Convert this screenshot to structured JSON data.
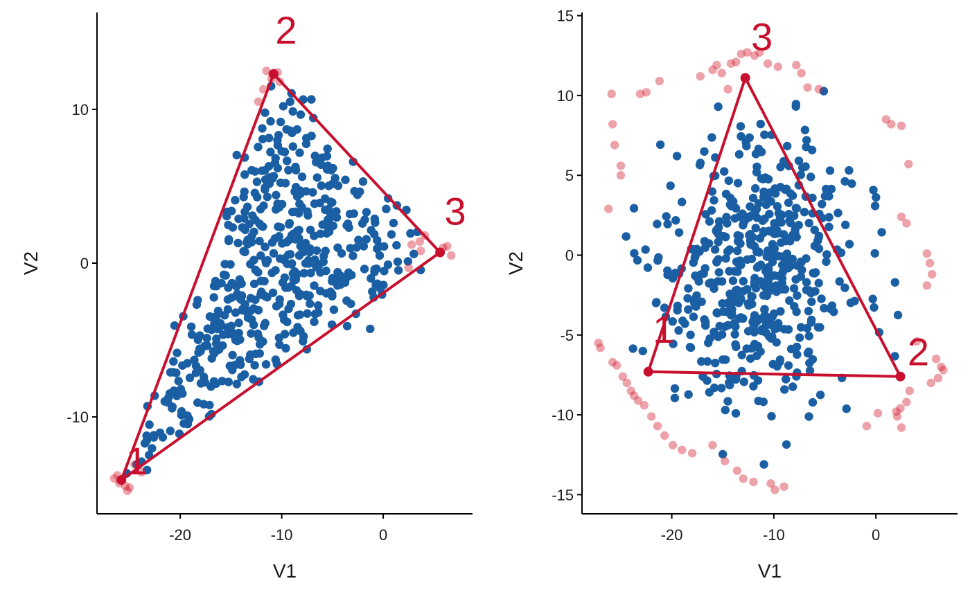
{
  "colors": {
    "points": "#1a5fa3",
    "triangle": "#c8102e",
    "outliers": "#d32032",
    "axis": "#000000"
  },
  "chart_data": [
    {
      "type": "scatter",
      "xlabel": "V1",
      "ylabel": "V2",
      "xlim": [
        -28.2,
        8.8
      ],
      "ylim": [
        -16.3,
        16.3
      ],
      "xticks": [
        -20,
        -10,
        0
      ],
      "xtick_labels": [
        "-20",
        "-10",
        "0"
      ],
      "yticks": [
        -10,
        0,
        10
      ],
      "ytick_labels": [
        "-10",
        "0",
        "10"
      ],
      "triangle": [
        {
          "label": "1",
          "x": -25.8,
          "y": -14.1
        },
        {
          "label": "2",
          "x": -10.8,
          "y": 12.3
        },
        {
          "label": "3",
          "x": 5.6,
          "y": 0.7
        }
      ],
      "highlighted_points": [
        {
          "x": -26.5,
          "y": -14.0
        },
        {
          "x": -26.0,
          "y": -14.3
        },
        {
          "x": -25.4,
          "y": -14.5
        },
        {
          "x": -26.2,
          "y": -13.8
        },
        {
          "x": -25.0,
          "y": -14.6
        },
        {
          "x": -24.5,
          "y": -13.1
        },
        {
          "x": -23.8,
          "y": -13.6
        },
        {
          "x": -25.2,
          "y": -14.8
        },
        {
          "x": -11.5,
          "y": 12.5
        },
        {
          "x": -10.9,
          "y": 12.3
        },
        {
          "x": -10.4,
          "y": 12.4
        },
        {
          "x": -11.0,
          "y": 12.0
        },
        {
          "x": -11.8,
          "y": 11.3
        },
        {
          "x": -12.3,
          "y": 10.5
        },
        {
          "x": -10.2,
          "y": 11.8
        },
        {
          "x": 2.8,
          "y": 1.2
        },
        {
          "x": 3.6,
          "y": 1.4
        },
        {
          "x": 3.7,
          "y": 0.8
        },
        {
          "x": 5.9,
          "y": 1.0
        },
        {
          "x": 6.7,
          "y": 0.5
        },
        {
          "x": 6.3,
          "y": 1.1
        },
        {
          "x": 2.5,
          "y": -0.3
        },
        {
          "x": 4.1,
          "y": 1.8
        }
      ]
    },
    {
      "type": "scatter",
      "xlabel": "V1",
      "ylabel": "V2",
      "xlim": [
        -28.8,
        8.0
      ],
      "ylim": [
        -16.2,
        15.2
      ],
      "xticks": [
        -20,
        -10,
        0
      ],
      "xtick_labels": [
        "-20",
        "-10",
        "0"
      ],
      "yticks": [
        -15,
        -10,
        -5,
        0,
        5,
        10,
        15
      ],
      "ytick_labels": [
        "-15",
        "-10",
        "-5",
        "0",
        "5",
        "10",
        "15"
      ],
      "triangle": [
        {
          "label": "1",
          "x": -22.3,
          "y": -7.3
        },
        {
          "label": "2",
          "x": 2.4,
          "y": -7.6
        },
        {
          "label": "3",
          "x": -12.8,
          "y": 11.1
        }
      ],
      "highlighted_points": [
        {
          "x": -27.2,
          "y": -5.5
        },
        {
          "x": -27.0,
          "y": -5.8
        },
        {
          "x": -25.8,
          "y": -6.7
        },
        {
          "x": -25.4,
          "y": -6.9
        },
        {
          "x": -24.8,
          "y": -7.6
        },
        {
          "x": -24.4,
          "y": -8.0
        },
        {
          "x": -24.0,
          "y": -8.5
        },
        {
          "x": -23.7,
          "y": -8.8
        },
        {
          "x": -23.3,
          "y": -9.1
        },
        {
          "x": -22.7,
          "y": -9.4
        },
        {
          "x": -22.0,
          "y": -10.1
        },
        {
          "x": -21.4,
          "y": -10.7
        },
        {
          "x": -20.7,
          "y": -11.3
        },
        {
          "x": -19.9,
          "y": -11.9
        },
        {
          "x": -19.0,
          "y": -12.2
        },
        {
          "x": -18.0,
          "y": -12.4
        },
        {
          "x": -16.0,
          "y": -11.9
        },
        {
          "x": -14.8,
          "y": -12.9
        },
        {
          "x": -13.6,
          "y": -13.5
        },
        {
          "x": -13.0,
          "y": -14.0
        },
        {
          "x": -12.0,
          "y": -14.2
        },
        {
          "x": -10.3,
          "y": -14.3
        },
        {
          "x": -9.9,
          "y": -14.7
        },
        {
          "x": -9.0,
          "y": -14.5
        },
        {
          "x": -26.2,
          "y": 2.9
        },
        {
          "x": -25.8,
          "y": 8.2
        },
        {
          "x": -25.6,
          "y": 6.9
        },
        {
          "x": -25.0,
          "y": 5.0
        },
        {
          "x": -25.9,
          "y": 10.1
        },
        {
          "x": -25.0,
          "y": 5.6
        },
        {
          "x": -23.1,
          "y": 10.1
        },
        {
          "x": -22.5,
          "y": 10.2
        },
        {
          "x": -21.2,
          "y": 10.9
        },
        {
          "x": -17.2,
          "y": 11.2
        },
        {
          "x": -16.0,
          "y": 11.6
        },
        {
          "x": -15.6,
          "y": 11.9
        },
        {
          "x": -15.1,
          "y": 11.4
        },
        {
          "x": -14.5,
          "y": 10.4
        },
        {
          "x": -14.2,
          "y": 12.0
        },
        {
          "x": -13.7,
          "y": 12.1
        },
        {
          "x": -13.2,
          "y": 12.6
        },
        {
          "x": -12.6,
          "y": 12.7
        },
        {
          "x": -11.9,
          "y": 12.5
        },
        {
          "x": -11.4,
          "y": 12.7
        },
        {
          "x": -10.6,
          "y": 12.0
        },
        {
          "x": -9.6,
          "y": 11.8
        },
        {
          "x": -7.8,
          "y": 11.9
        },
        {
          "x": -7.3,
          "y": 11.4
        },
        {
          "x": -6.7,
          "y": 10.5
        },
        {
          "x": -5.6,
          "y": 10.4
        },
        {
          "x": 1.0,
          "y": 8.5
        },
        {
          "x": 1.5,
          "y": 8.2
        },
        {
          "x": 2.5,
          "y": 8.1
        },
        {
          "x": 3.2,
          "y": 5.7
        },
        {
          "x": 2.5,
          "y": 2.4
        },
        {
          "x": 3.0,
          "y": 2.0
        },
        {
          "x": 5.0,
          "y": 0.1
        },
        {
          "x": 5.3,
          "y": -0.5
        },
        {
          "x": 5.5,
          "y": -1.2
        },
        {
          "x": 5.0,
          "y": -1.9
        },
        {
          "x": 4.0,
          "y": -5.4
        },
        {
          "x": 5.9,
          "y": -6.5
        },
        {
          "x": 6.4,
          "y": -7.0
        },
        {
          "x": 6.6,
          "y": -7.2
        },
        {
          "x": 6.1,
          "y": -7.7
        },
        {
          "x": 5.4,
          "y": -8.0
        },
        {
          "x": 3.3,
          "y": -8.5
        },
        {
          "x": 3.0,
          "y": -9.2
        },
        {
          "x": 2.4,
          "y": -9.6
        },
        {
          "x": 2.0,
          "y": -9.8
        },
        {
          "x": 0.2,
          "y": -9.9
        },
        {
          "x": -0.9,
          "y": -10.7
        },
        {
          "x": 2.5,
          "y": -10.8
        },
        {
          "x": 2.1,
          "y": -10.1
        }
      ]
    }
  ]
}
